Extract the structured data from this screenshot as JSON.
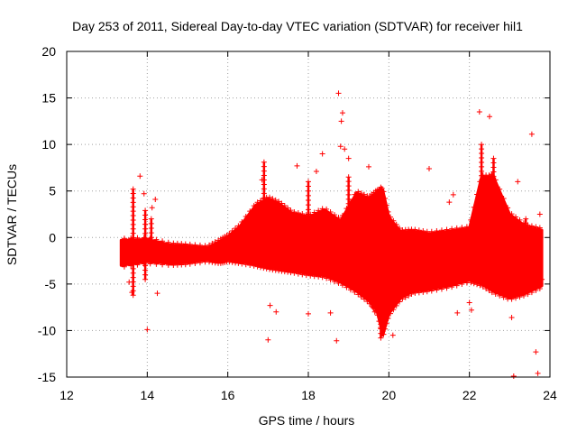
{
  "chart_data": {
    "type": "scatter",
    "title": "Day 253 of 2011, Sidereal Day-to-day VTEC variation (SDTVAR) for receiver hil1",
    "xlabel": "GPS time / hours",
    "ylabel": "SDTVAR / TECUs",
    "xlim": [
      12,
      24
    ],
    "ylim": [
      -15,
      20
    ],
    "xticks": [
      "12",
      "14",
      "16",
      "18",
      "20",
      "22",
      "24"
    ],
    "yticks": [
      "-15",
      "-10",
      "-5",
      "0",
      "5",
      "10",
      "15",
      "20"
    ],
    "grid": true,
    "marker": "+",
    "series_color": "#ff0000",
    "bands": [
      {
        "x": [
          13.35,
          14.0,
          14.6,
          15.0,
          15.5,
          15.8,
          16.0,
          16.3,
          16.7,
          17.0,
          17.3,
          17.6,
          18.0,
          18.4,
          18.8,
          19.2,
          19.5,
          19.7,
          19.85,
          20.0,
          20.3,
          20.6,
          21.0,
          21.5,
          22.0,
          22.3,
          22.6,
          23.0,
          23.4,
          23.8
        ],
        "lower": [
          -3.0,
          -2.6,
          -2.8,
          -2.7,
          -2.4,
          -2.6,
          -2.4,
          -2.6,
          -2.9,
          -3.2,
          -3.4,
          -3.6,
          -3.9,
          -4.1,
          -4.8,
          -5.8,
          -6.8,
          -7.8,
          -10.5,
          -8.2,
          -6.5,
          -5.8,
          -5.6,
          -5.2,
          -4.6,
          -5.0,
          -5.8,
          -6.5,
          -6.0,
          -5.2
        ],
        "upper": [
          -0.3,
          -0.2,
          -0.8,
          -0.9,
          -1.1,
          -0.4,
          0.1,
          1.2,
          3.5,
          4.2,
          3.6,
          2.6,
          2.2,
          3.0,
          1.8,
          4.8,
          4.2,
          4.9,
          5.1,
          2.2,
          0.6,
          0.7,
          0.4,
          0.7,
          1.0,
          6.5,
          6.5,
          2.5,
          1.2,
          0.8
        ]
      }
    ],
    "spikes": [
      {
        "x": 13.65,
        "lower": -6.2,
        "upper": 5.2
      },
      {
        "x": 13.95,
        "lower": -4.5,
        "upper": 2.9
      },
      {
        "x": 14.1,
        "lower": -2.5,
        "upper": 2.0
      },
      {
        "x": 16.9,
        "lower": -1.0,
        "upper": 8.1
      },
      {
        "x": 18.0,
        "lower": -1.0,
        "upper": 6.0
      },
      {
        "x": 19.0,
        "lower": -4.0,
        "upper": 6.5
      },
      {
        "x": 19.8,
        "lower": -10.8,
        "upper": 5.4
      },
      {
        "x": 22.3,
        "lower": -2.0,
        "upper": 10.0
      },
      {
        "x": 22.6,
        "lower": -3.0,
        "upper": 8.5
      },
      {
        "x": 23.4,
        "lower": -4.5,
        "upper": 2.0
      }
    ],
    "outliers": [
      [
        13.55,
        -4.8
      ],
      [
        13.62,
        -5.9
      ],
      [
        13.82,
        6.6
      ],
      [
        13.92,
        4.7
      ],
      [
        14.0,
        -9.9
      ],
      [
        14.12,
        3.2
      ],
      [
        14.2,
        4.1
      ],
      [
        14.25,
        -6.0
      ],
      [
        16.85,
        6.2
      ],
      [
        17.0,
        -11.0
      ],
      [
        17.05,
        -7.3
      ],
      [
        17.2,
        -8.0
      ],
      [
        17.5,
        -2.8
      ],
      [
        17.72,
        7.7
      ],
      [
        18.0,
        -8.2
      ],
      [
        18.2,
        7.1
      ],
      [
        18.35,
        9.0
      ],
      [
        18.55,
        -8.1
      ],
      [
        18.7,
        -11.1
      ],
      [
        18.75,
        15.5
      ],
      [
        18.8,
        9.8
      ],
      [
        18.82,
        12.5
      ],
      [
        18.85,
        13.4
      ],
      [
        18.9,
        9.5
      ],
      [
        19.0,
        8.5
      ],
      [
        19.1,
        3.0
      ],
      [
        19.5,
        7.6
      ],
      [
        19.6,
        -7.5
      ],
      [
        19.65,
        -8.0
      ],
      [
        20.1,
        -10.5
      ],
      [
        21.0,
        7.4
      ],
      [
        21.5,
        3.8
      ],
      [
        21.6,
        4.6
      ],
      [
        21.7,
        -8.1
      ],
      [
        22.0,
        -7.0
      ],
      [
        22.05,
        -7.8
      ],
      [
        22.25,
        13.5
      ],
      [
        22.5,
        13.0
      ],
      [
        22.55,
        6.8
      ],
      [
        22.9,
        -4.0
      ],
      [
        23.05,
        -8.6
      ],
      [
        23.1,
        -14.9
      ],
      [
        23.2,
        6.0
      ],
      [
        23.55,
        11.1
      ],
      [
        23.65,
        -12.3
      ],
      [
        23.7,
        -14.6
      ],
      [
        23.75,
        2.5
      ],
      [
        23.8,
        -4.5
      ]
    ]
  }
}
